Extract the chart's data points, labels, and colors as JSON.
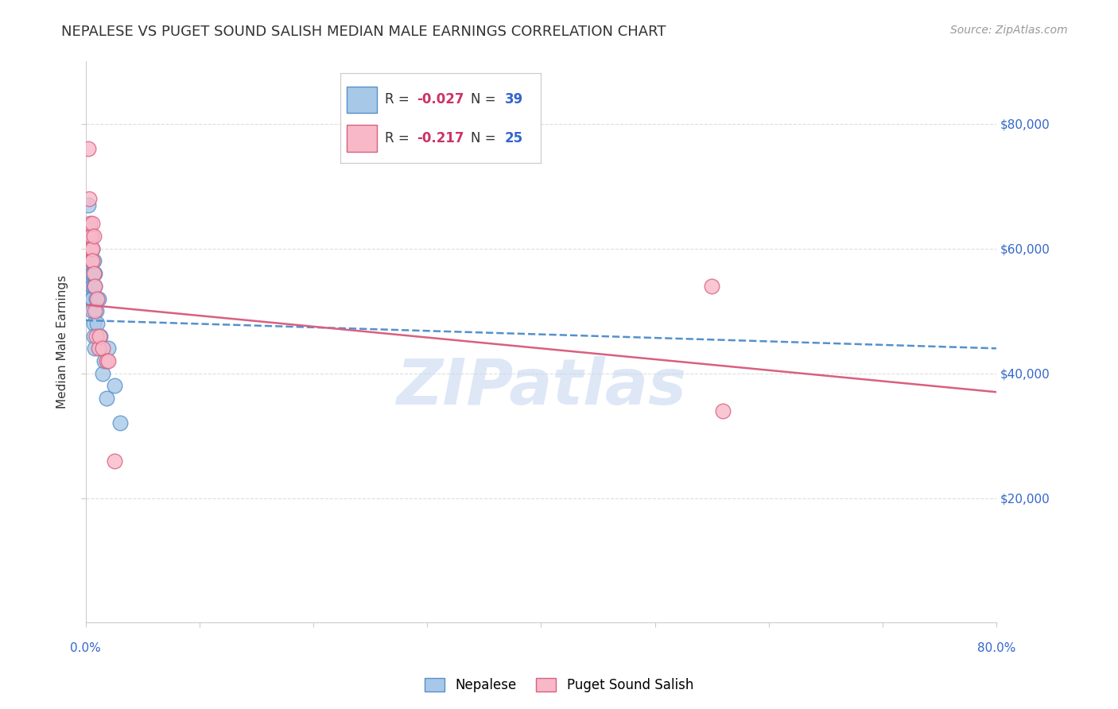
{
  "title": "NEPALESE VS PUGET SOUND SALISH MEDIAN MALE EARNINGS CORRELATION CHART",
  "source": "Source: ZipAtlas.com",
  "ylabel": "Median Male Earnings",
  "ytick_labels": [
    "$20,000",
    "$40,000",
    "$60,000",
    "$80,000"
  ],
  "ytick_values": [
    20000,
    40000,
    60000,
    80000
  ],
  "ymin": 0,
  "ymax": 90000,
  "xmin": 0.0,
  "xmax": 0.8,
  "nepalese_x": [
    0.002,
    0.003,
    0.003,
    0.004,
    0.004,
    0.004,
    0.004,
    0.005,
    0.005,
    0.005,
    0.005,
    0.005,
    0.005,
    0.006,
    0.006,
    0.006,
    0.006,
    0.006,
    0.006,
    0.007,
    0.007,
    0.007,
    0.007,
    0.007,
    0.008,
    0.008,
    0.008,
    0.009,
    0.009,
    0.01,
    0.011,
    0.012,
    0.013,
    0.015,
    0.016,
    0.018,
    0.02,
    0.025,
    0.03
  ],
  "nepalese_y": [
    67000,
    63000,
    61000,
    59000,
    57000,
    55000,
    53000,
    62000,
    60000,
    58000,
    56000,
    54000,
    52000,
    60000,
    58000,
    56000,
    54000,
    52000,
    50000,
    58000,
    56000,
    54000,
    48000,
    46000,
    56000,
    54000,
    44000,
    52000,
    50000,
    48000,
    52000,
    44000,
    46000,
    40000,
    42000,
    36000,
    44000,
    38000,
    32000
  ],
  "puget_x": [
    0.002,
    0.003,
    0.003,
    0.004,
    0.004,
    0.005,
    0.005,
    0.005,
    0.006,
    0.006,
    0.006,
    0.007,
    0.007,
    0.008,
    0.008,
    0.009,
    0.01,
    0.011,
    0.012,
    0.015,
    0.018,
    0.02,
    0.025,
    0.55,
    0.56
  ],
  "puget_y": [
    76000,
    68000,
    62000,
    64000,
    60000,
    62000,
    60000,
    58000,
    64000,
    60000,
    58000,
    62000,
    56000,
    54000,
    50000,
    46000,
    52000,
    44000,
    46000,
    44000,
    42000,
    42000,
    26000,
    54000,
    34000
  ],
  "nepalese_color": "#a8c8e8",
  "nepalese_edge": "#5590cc",
  "puget_color": "#f8b8c8",
  "puget_edge": "#d86080",
  "blue_trend_x": [
    0.0,
    0.8
  ],
  "blue_trend_y": [
    48500,
    44000
  ],
  "pink_trend_x": [
    0.0,
    0.8
  ],
  "pink_trend_y": [
    51000,
    37000
  ],
  "watermark_text": "ZIPatlas",
  "watermark_color": "#c8d8f0",
  "background_color": "#ffffff",
  "grid_color": "#dddddd",
  "title_color": "#333333",
  "tick_color": "#3366cc",
  "r_label_color": "#cc3366",
  "n_label_color": "#3366cc",
  "title_fontsize": 13,
  "source_fontsize": 10,
  "tick_fontsize": 11,
  "ylabel_fontsize": 11,
  "legend_fontsize": 13
}
